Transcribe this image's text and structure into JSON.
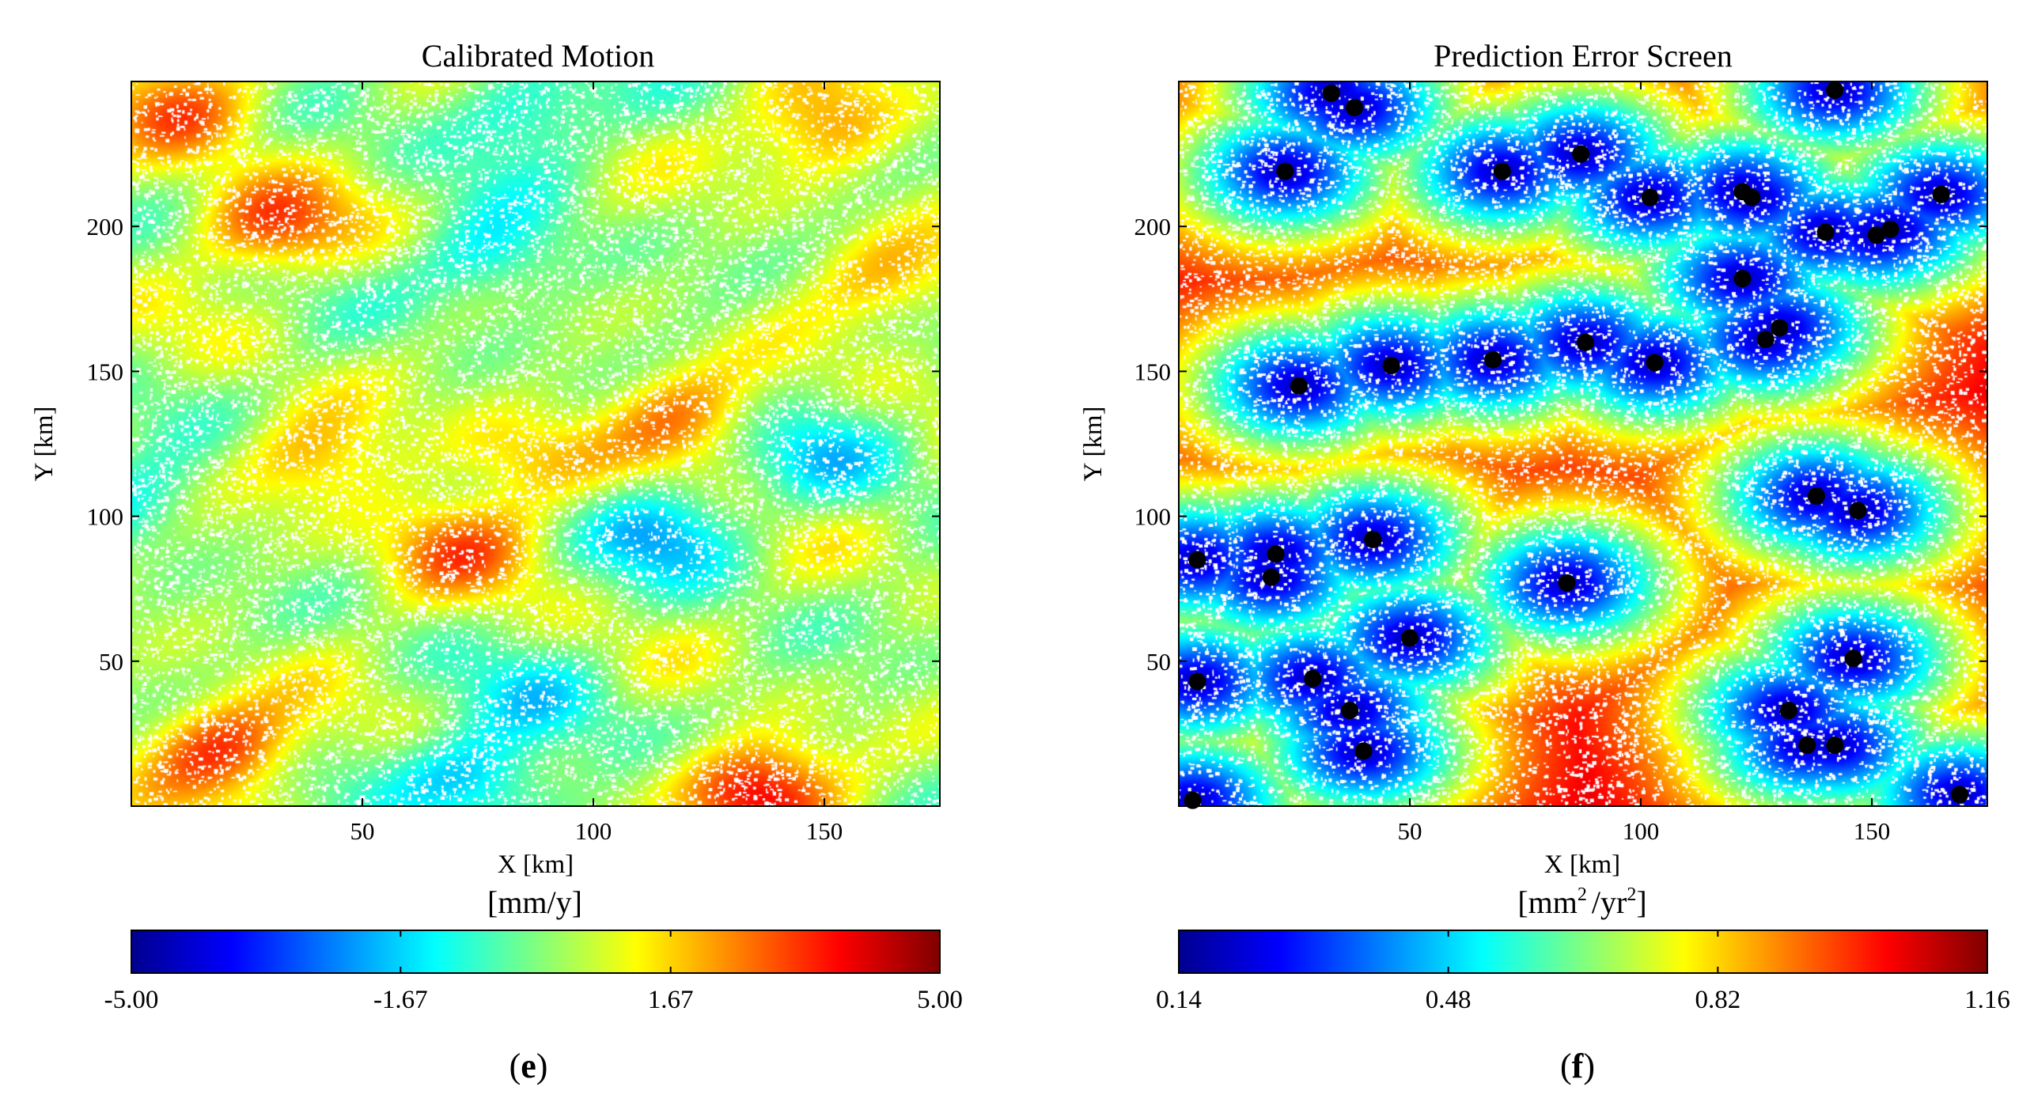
{
  "chart_data": [
    {
      "type": "heatmap",
      "panel_label": "e",
      "title": "Calibrated Motion",
      "xlabel": "X [km]",
      "ylabel": "Y [km]",
      "xlim": [
        0,
        175
      ],
      "ylim": [
        0,
        250
      ],
      "xticks": [
        50,
        100,
        150
      ],
      "yticks": [
        50,
        100,
        150,
        200
      ],
      "colorbar": {
        "unit": "[mm/y]",
        "min": -5.0,
        "max": 5.0,
        "tick_labels": [
          "-5.00",
          "-1.67",
          "1.67",
          "5.00"
        ],
        "tick_values": [
          -5.0,
          -1.67,
          1.67,
          5.0
        ],
        "colormap": "jet"
      },
      "field_range_approx": [
        -2.5,
        3.5
      ],
      "hotspots": [
        {
          "x": 20,
          "y": 20,
          "value": 3.0
        },
        {
          "x": 135,
          "y": 5,
          "value": 3.5
        },
        {
          "x": 30,
          "y": 200,
          "value": 2.5
        },
        {
          "x": 70,
          "y": 90,
          "value": 2.2
        },
        {
          "x": 120,
          "y": 135,
          "value": 2.0
        },
        {
          "x": 10,
          "y": 240,
          "value": 2.5
        },
        {
          "x": 150,
          "y": 235,
          "value": 2.0
        },
        {
          "x": 40,
          "y": 120,
          "value": 1.5
        },
        {
          "x": 85,
          "y": 120,
          "value": 1.5
        },
        {
          "x": 165,
          "y": 180,
          "value": 1.5
        }
      ],
      "coldspots": [
        {
          "x": 115,
          "y": 95,
          "value": -2.0
        },
        {
          "x": 78,
          "y": 188,
          "value": -1.8
        },
        {
          "x": 85,
          "y": 240,
          "value": -2.0
        },
        {
          "x": 75,
          "y": 10,
          "value": -2.5
        },
        {
          "x": 150,
          "y": 120,
          "value": -1.5
        },
        {
          "x": 0,
          "y": 105,
          "value": -1.5
        },
        {
          "x": 90,
          "y": 35,
          "value": -1.3
        }
      ]
    },
    {
      "type": "heatmap",
      "panel_label": "f",
      "title": "Prediction Error Screen",
      "xlabel": "X [km]",
      "ylabel": "Y [km]",
      "xlim": [
        0,
        175
      ],
      "ylim": [
        0,
        250
      ],
      "xticks": [
        50,
        100,
        150
      ],
      "yticks": [
        50,
        100,
        150,
        200
      ],
      "colorbar": {
        "unit_base1": "[mm",
        "unit_sup1": "2",
        "unit_base2": "/yr",
        "unit_sup2": "2",
        "unit_end": "]",
        "min": 0.14,
        "max": 1.16,
        "tick_labels": [
          "0.14",
          "0.48",
          "0.82",
          "1.16"
        ],
        "tick_values": [
          0.14,
          0.48,
          0.82,
          1.16
        ],
        "colormap": "jet"
      },
      "error_model": {
        "floor": 0.2,
        "sill": 1.12,
        "range_km": 27
      },
      "points": [
        {
          "x": 33,
          "y": 246
        },
        {
          "x": 38,
          "y": 241
        },
        {
          "x": 142,
          "y": 247
        },
        {
          "x": 23,
          "y": 219
        },
        {
          "x": 70,
          "y": 219
        },
        {
          "x": 87,
          "y": 225
        },
        {
          "x": 102,
          "y": 210
        },
        {
          "x": 122,
          "y": 212
        },
        {
          "x": 124,
          "y": 210
        },
        {
          "x": 165,
          "y": 211
        },
        {
          "x": 140,
          "y": 198
        },
        {
          "x": 151,
          "y": 197
        },
        {
          "x": 154,
          "y": 199
        },
        {
          "x": 122,
          "y": 182
        },
        {
          "x": 130,
          "y": 165
        },
        {
          "x": 127,
          "y": 161
        },
        {
          "x": 26,
          "y": 145
        },
        {
          "x": 46,
          "y": 152
        },
        {
          "x": 68,
          "y": 154
        },
        {
          "x": 88,
          "y": 160
        },
        {
          "x": 103,
          "y": 153
        },
        {
          "x": 138,
          "y": 107
        },
        {
          "x": 147,
          "y": 102
        },
        {
          "x": 4,
          "y": 85
        },
        {
          "x": 21,
          "y": 87
        },
        {
          "x": 20,
          "y": 79
        },
        {
          "x": 42,
          "y": 92
        },
        {
          "x": 84,
          "y": 77
        },
        {
          "x": 50,
          "y": 58
        },
        {
          "x": 4,
          "y": 43
        },
        {
          "x": 29,
          "y": 44
        },
        {
          "x": 37,
          "y": 33
        },
        {
          "x": 40,
          "y": 19
        },
        {
          "x": 146,
          "y": 51
        },
        {
          "x": 132,
          "y": 33
        },
        {
          "x": 136,
          "y": 21
        },
        {
          "x": 142,
          "y": 21
        },
        {
          "x": 169,
          "y": 4
        },
        {
          "x": 3,
          "y": 2
        }
      ]
    }
  ]
}
